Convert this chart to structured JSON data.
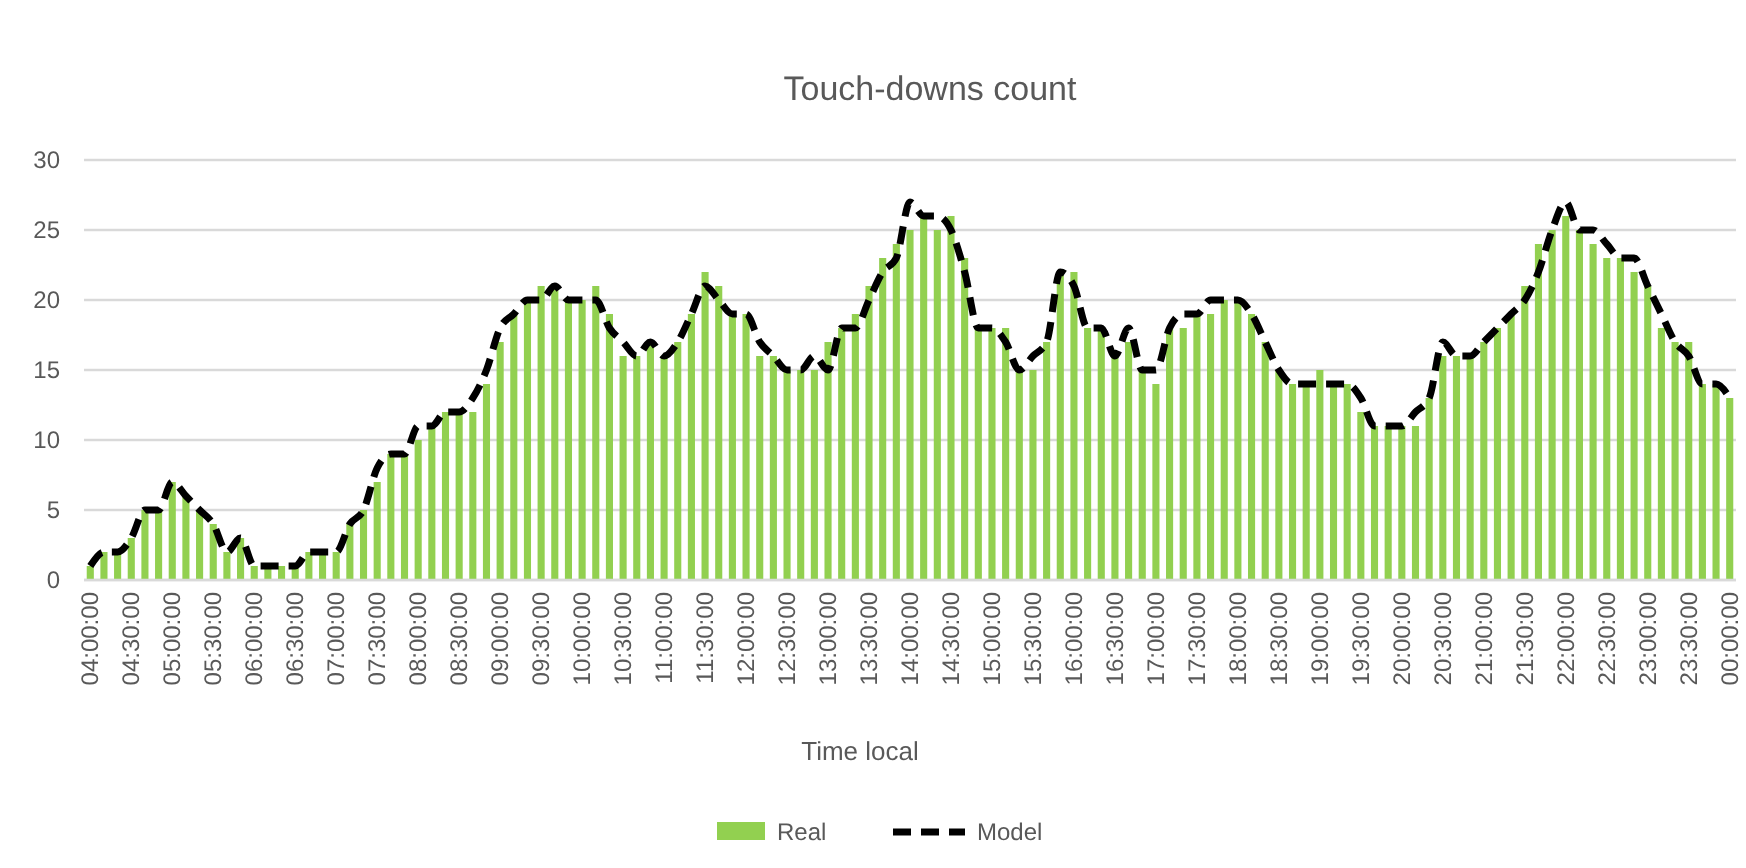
{
  "chart_data": {
    "type": "bar",
    "title": "Touch-downs count",
    "xlabel": "Time local",
    "categories": [
      "04:00:00",
      null,
      null,
      "04:30:00",
      null,
      null,
      "05:00:00",
      null,
      null,
      "05:30:00",
      null,
      null,
      "06:00:00",
      null,
      null,
      "06:30:00",
      null,
      null,
      "07:00:00",
      null,
      null,
      "07:30:00",
      null,
      null,
      "08:00:00",
      null,
      null,
      "08:30:00",
      null,
      null,
      "09:00:00",
      null,
      null,
      "09:30:00",
      null,
      null,
      "10:00:00",
      null,
      null,
      "10:30:00",
      null,
      null,
      "11:00:00",
      null,
      null,
      "11:30:00",
      null,
      null,
      "12:00:00",
      null,
      null,
      "12:30:00",
      null,
      null,
      "13:00:00",
      null,
      null,
      "13:30:00",
      null,
      null,
      "14:00:00",
      null,
      null,
      "14:30:00",
      null,
      null,
      "15:00:00",
      null,
      null,
      "15:30:00",
      null,
      null,
      "16:00:00",
      null,
      null,
      "16:30:00",
      null,
      null,
      "17:00:00",
      null,
      null,
      "17:30:00",
      null,
      null,
      "18:00:00",
      null,
      null,
      "18:30:00",
      null,
      null,
      "19:00:00",
      null,
      null,
      "19:30:00",
      null,
      null,
      "20:00:00",
      null,
      null,
      "20:30:00",
      null,
      null,
      "21:00:00",
      null,
      null,
      "21:30:00",
      null,
      null,
      "22:00:00",
      null,
      null,
      "22:30:00",
      null,
      null,
      "23:00:00",
      null,
      null,
      "23:30:00",
      null,
      null,
      "00:00:00"
    ],
    "series": [
      {
        "name": "Real",
        "color": "#92d050",
        "values": [
          1,
          2,
          2,
          3,
          5,
          5,
          7,
          6,
          5,
          4,
          2,
          3,
          1,
          1,
          1,
          1,
          2,
          2,
          2,
          4,
          5,
          7,
          9,
          9,
          10,
          11,
          12,
          12,
          12,
          14,
          17,
          19,
          20,
          21,
          21,
          20,
          20,
          21,
          19,
          16,
          16,
          17,
          16,
          17,
          19,
          22,
          21,
          19,
          19,
          16,
          16,
          15,
          15,
          15,
          17,
          18,
          19,
          21,
          23,
          24,
          25,
          26,
          25,
          26,
          23,
          18,
          18,
          18,
          15,
          15,
          17,
          22,
          22,
          18,
          18,
          16,
          17,
          15,
          14,
          18,
          18,
          19,
          19,
          20,
          20,
          19,
          17,
          15,
          14,
          14,
          15,
          14,
          14,
          12,
          11,
          11,
          11,
          11,
          13,
          16,
          16,
          16,
          17,
          18,
          19,
          21,
          24,
          25,
          26,
          25,
          24,
          23,
          23,
          22,
          21,
          18,
          17,
          17,
          14,
          14,
          13
        ]
      },
      {
        "name": "Model",
        "type": "line",
        "color": "#000000",
        "line_style": "dashed",
        "values": [
          1,
          2,
          2,
          3,
          5,
          5,
          7,
          6,
          5,
          4,
          2,
          3,
          1,
          1,
          1,
          1,
          2,
          2,
          2,
          4,
          5,
          8,
          9,
          9,
          11,
          11,
          12,
          12,
          13,
          15,
          18,
          19,
          20,
          20,
          21,
          20,
          20,
          20,
          18,
          17,
          16,
          17,
          16,
          17,
          19,
          21,
          20,
          19,
          19,
          17,
          16,
          15,
          15,
          16,
          15,
          18,
          18,
          20,
          22,
          23,
          27,
          26,
          26,
          25,
          22,
          18,
          18,
          17,
          15,
          16,
          17,
          22,
          21,
          18,
          18,
          16,
          18,
          15,
          15,
          18,
          19,
          19,
          20,
          20,
          20,
          19,
          17,
          15,
          14,
          14,
          14,
          14,
          14,
          13,
          11,
          11,
          11,
          12,
          13,
          17,
          16,
          16,
          17,
          18,
          19,
          20,
          22,
          25,
          27,
          25,
          25,
          24,
          23,
          23,
          21,
          19,
          17,
          16,
          14,
          14,
          13
        ]
      }
    ],
    "ylim": [
      0,
      30
    ],
    "yticks": [
      0,
      5,
      10,
      15,
      20,
      25,
      30
    ],
    "grid": "y",
    "legend": "bottom"
  }
}
